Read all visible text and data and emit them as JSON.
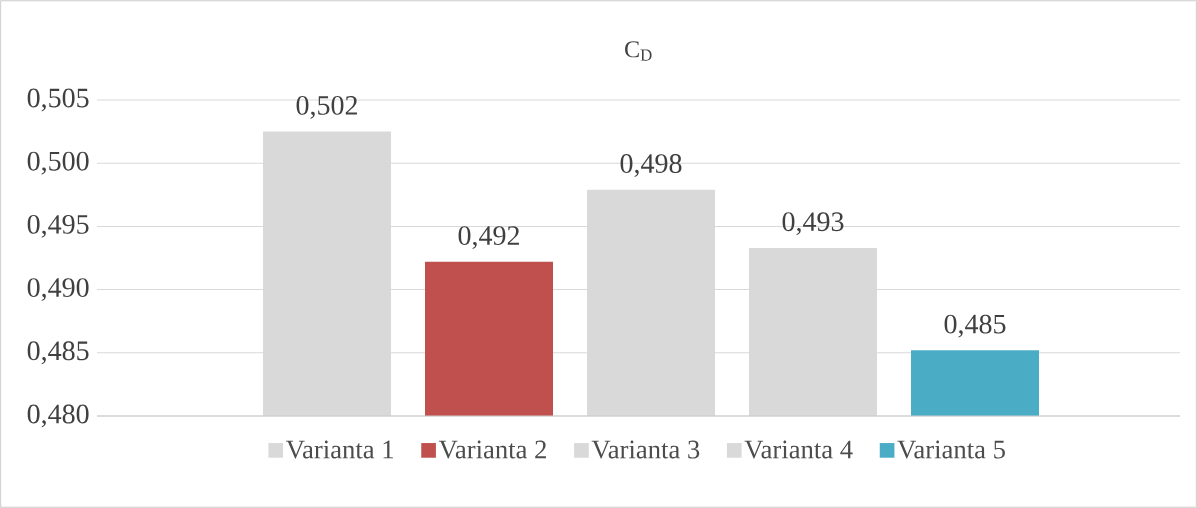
{
  "chart_data": {
    "type": "bar",
    "title": "C$_{D}$",
    "categories": [
      null
    ],
    "series": [
      {
        "name": "Varianta 1",
        "color": "#d9d9d9",
        "values": [
          0.5025
        ],
        "value_labels": [
          "0,502"
        ]
      },
      {
        "name": "Varianta 2",
        "color": "#c0504d",
        "values": [
          0.4922
        ],
        "value_labels": [
          "0,492"
        ]
      },
      {
        "name": "Varianta 3",
        "color": "#d9d9d9",
        "values": [
          0.4979
        ],
        "value_labels": [
          "0,498"
        ]
      },
      {
        "name": "Varianta 4",
        "color": "#d9d9d9",
        "values": [
          0.4933
        ],
        "value_labels": [
          "0,493"
        ]
      },
      {
        "name": "Varianta 5",
        "color": "#4bacc6",
        "values": [
          0.4852
        ],
        "value_labels": [
          "0,485"
        ]
      }
    ],
    "ylim": [
      0.48,
      0.505
    ],
    "yticks": [
      {
        "value": 0.48,
        "label": "0,480"
      },
      {
        "value": 0.485,
        "label": "0,485"
      },
      {
        "value": 0.49,
        "label": "0,490"
      },
      {
        "value": 0.495,
        "label": "0,495"
      },
      {
        "value": 0.5,
        "label": "0,500"
      },
      {
        "value": 0.505,
        "label": "0,505"
      }
    ],
    "grid": "y",
    "legend": "bottom"
  }
}
